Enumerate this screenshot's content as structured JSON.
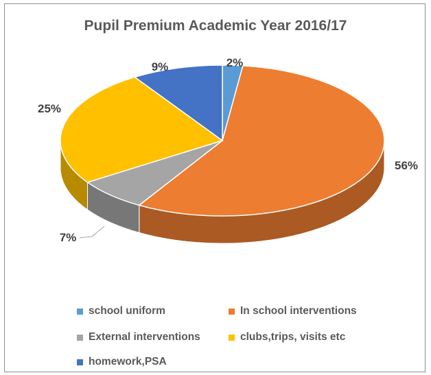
{
  "chart_data": {
    "type": "pie",
    "title": "Pupil Premium Academic Year 2016/17",
    "legend_position": "bottom",
    "slices": [
      {
        "name": "school uniform",
        "value": 2,
        "label": "2%",
        "color": "#5b9bd5"
      },
      {
        "name": "In school interventions",
        "value": 56,
        "label": "56%",
        "color": "#ed7d31"
      },
      {
        "name": "External interventions",
        "value": 7,
        "label": "7%",
        "color": "#a5a5a5"
      },
      {
        "name": "clubs,trips, visits etc",
        "value": 25,
        "label": "25%",
        "color": "#ffc000"
      },
      {
        "name": "homework,PSA",
        "value": 9,
        "label": "9%",
        "color": "#4472c4"
      }
    ]
  }
}
